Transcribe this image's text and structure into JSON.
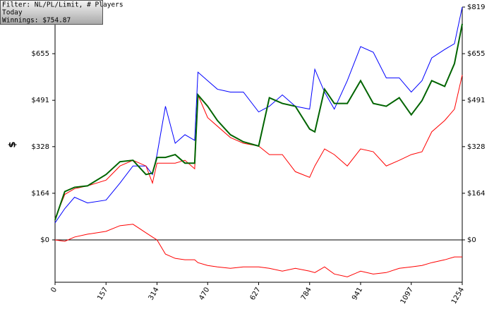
{
  "chart_data": {
    "type": "line",
    "ylabel": "$",
    "annotations": [
      "Filter: NL/PL/Limit, # Players",
      "Today",
      "Winnings: $754.87"
    ],
    "x": [
      0,
      30,
      60,
      100,
      157,
      200,
      240,
      280,
      300,
      314,
      340,
      370,
      400,
      430,
      440,
      470,
      500,
      540,
      580,
      627,
      660,
      700,
      740,
      784,
      800,
      830,
      860,
      900,
      941,
      980,
      1020,
      1060,
      1097,
      1130,
      1160,
      1200,
      1230,
      1254
    ],
    "series": [
      {
        "color": "#0000ff",
        "width": 1,
        "values": [
          60,
          110,
          150,
          130,
          140,
          200,
          260,
          260,
          230,
          300,
          470,
          340,
          370,
          350,
          590,
          560,
          530,
          520,
          520,
          450,
          470,
          510,
          470,
          460,
          600,
          520,
          460,
          560,
          680,
          660,
          570,
          570,
          520,
          560,
          640,
          670,
          690,
          819
        ]
      },
      {
        "color": "#ff0000",
        "width": 1,
        "values": [
          75,
          160,
          180,
          190,
          210,
          260,
          280,
          260,
          200,
          270,
          270,
          270,
          280,
          250,
          510,
          430,
          400,
          360,
          340,
          330,
          300,
          300,
          240,
          220,
          260,
          320,
          300,
          260,
          320,
          310,
          260,
          280,
          300,
          310,
          380,
          420,
          460,
          580
        ]
      },
      {
        "color": "#ff0000",
        "width": 1,
        "values": [
          0,
          -5,
          10,
          20,
          30,
          50,
          55,
          25,
          10,
          0,
          -50,
          -65,
          -70,
          -70,
          -80,
          -90,
          -95,
          -100,
          -95,
          -95,
          -100,
          -110,
          -100,
          -110,
          -115,
          -95,
          -120,
          -130,
          -110,
          -120,
          -115,
          -100,
          -95,
          -90,
          -80,
          -70,
          -60,
          -60
        ]
      },
      {
        "color": "#006400",
        "width": 2,
        "values": [
          70,
          170,
          185,
          190,
          230,
          275,
          280,
          230,
          235,
          290,
          290,
          300,
          270,
          270,
          510,
          470,
          420,
          370,
          345,
          330,
          500,
          480,
          470,
          390,
          380,
          530,
          480,
          480,
          560,
          480,
          470,
          500,
          440,
          490,
          560,
          540,
          620,
          760
        ]
      }
    ],
    "xlim": [
      0,
      1254
    ],
    "xticks": [
      0,
      157,
      314,
      470,
      627,
      784,
      941,
      1097,
      1254
    ],
    "ylim": [
      -149,
      819
    ],
    "yticks": [
      {
        "value": 0,
        "label": "$0"
      },
      {
        "value": 164,
        "label": "$164"
      },
      {
        "value": 328,
        "label": "$328"
      },
      {
        "value": 491,
        "label": "$491"
      },
      {
        "value": 655,
        "label": "$655"
      },
      {
        "value": 819,
        "label": "$819"
      }
    ]
  }
}
